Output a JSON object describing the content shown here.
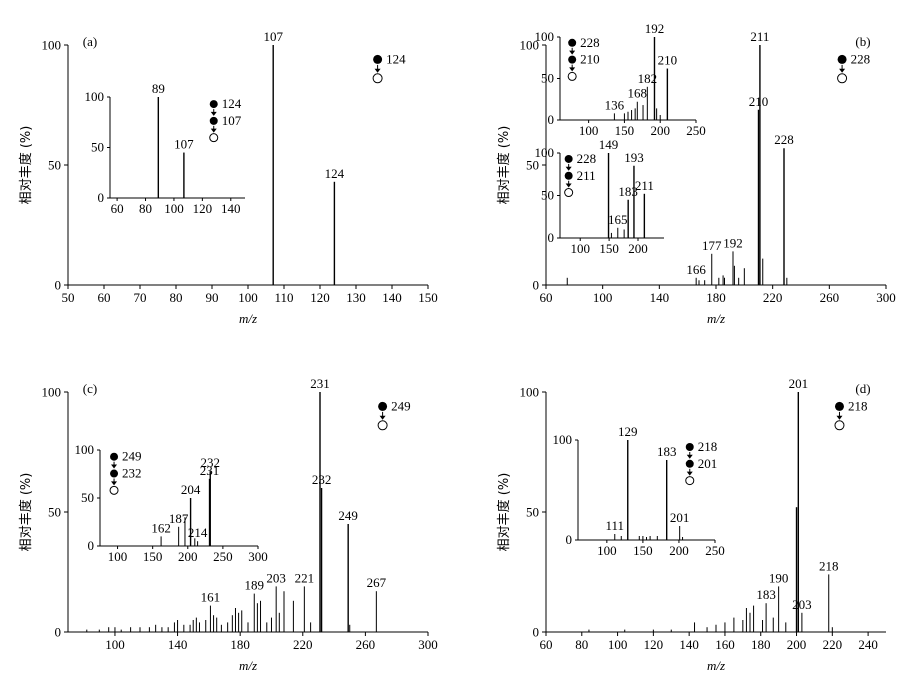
{
  "chart_data": [
    {
      "id": "a",
      "type": "bar",
      "panel_label": "(a)",
      "xlabel": "m/z",
      "ylabel": "相对丰度 (%)",
      "xlim": [
        50,
        150
      ],
      "ylim": [
        0,
        100
      ],
      "xticks": [
        50,
        60,
        70,
        80,
        90,
        100,
        110,
        120,
        130,
        140,
        150
      ],
      "yticks": [
        0,
        50,
        100
      ],
      "peaks": [
        {
          "x": 107,
          "y": 100
        },
        {
          "x": 124,
          "y": 43
        }
      ],
      "peak_labels": [
        {
          "x": 107,
          "y": 100,
          "text": "107"
        },
        {
          "x": 124,
          "y": 43,
          "text": "124"
        }
      ],
      "scheme": {
        "labels": [
          "124"
        ],
        "x": 136,
        "y": 94
      },
      "insets": [
        {
          "xlim": [
            55,
            150
          ],
          "ylim": [
            0,
            100
          ],
          "xticks": [
            60,
            80,
            100,
            120,
            140
          ],
          "yticks": [
            0,
            50,
            100
          ],
          "peaks": [
            {
              "x": 89,
              "y": 100
            },
            {
              "x": 107,
              "y": 45
            }
          ],
          "peak_labels": [
            {
              "x": 89,
              "y": 100,
              "text": "89"
            },
            {
              "x": 107,
              "y": 45,
              "text": "107"
            }
          ],
          "scheme": {
            "labels": [
              "124",
              "107"
            ],
            "x": 128,
            "y": 93
          }
        }
      ]
    },
    {
      "id": "b",
      "type": "bar",
      "panel_label": "(b)",
      "xlabel": "m/z",
      "ylabel": "相对丰度 (%)",
      "xlim": [
        60,
        300
      ],
      "ylim": [
        0,
        100
      ],
      "xticks": [
        60,
        100,
        140,
        180,
        220,
        260,
        300
      ],
      "yticks": [
        0,
        50,
        100
      ],
      "peaks": [
        {
          "x": 75,
          "y": 3
        },
        {
          "x": 166,
          "y": 3
        },
        {
          "x": 168,
          "y": 2
        },
        {
          "x": 172,
          "y": 2
        },
        {
          "x": 177,
          "y": 13
        },
        {
          "x": 182,
          "y": 3
        },
        {
          "x": 185,
          "y": 4
        },
        {
          "x": 186,
          "y": 3
        },
        {
          "x": 192,
          "y": 14
        },
        {
          "x": 193,
          "y": 8
        },
        {
          "x": 196,
          "y": 3
        },
        {
          "x": 200,
          "y": 7
        },
        {
          "x": 210,
          "y": 73
        },
        {
          "x": 211,
          "y": 100
        },
        {
          "x": 213,
          "y": 11
        },
        {
          "x": 228,
          "y": 57
        },
        {
          "x": 230,
          "y": 3
        }
      ],
      "peak_labels": [
        {
          "x": 166,
          "y": 3,
          "text": "166"
        },
        {
          "x": 177,
          "y": 13,
          "text": "177"
        },
        {
          "x": 192,
          "y": 14,
          "text": "192"
        },
        {
          "x": 210,
          "y": 73,
          "text": "210"
        },
        {
          "x": 211,
          "y": 100,
          "text": "211"
        },
        {
          "x": 228,
          "y": 57,
          "text": "228"
        }
      ],
      "scheme": {
        "labels": [
          "228"
        ],
        "x": 269,
        "y": 94
      },
      "insets": [
        {
          "xlim": [
            60,
            250
          ],
          "ylim": [
            0,
            100
          ],
          "xticks": [
            100,
            150,
            200,
            250
          ],
          "yticks": [
            0,
            50,
            100
          ],
          "peaks": [
            {
              "x": 136,
              "y": 8
            },
            {
              "x": 150,
              "y": 8
            },
            {
              "x": 155,
              "y": 10
            },
            {
              "x": 160,
              "y": 12
            },
            {
              "x": 165,
              "y": 14
            },
            {
              "x": 168,
              "y": 22
            },
            {
              "x": 176,
              "y": 18
            },
            {
              "x": 182,
              "y": 40
            },
            {
              "x": 192,
              "y": 100
            },
            {
              "x": 195,
              "y": 14
            },
            {
              "x": 200,
              "y": 6
            },
            {
              "x": 210,
              "y": 62
            }
          ],
          "peak_labels": [
            {
              "x": 136,
              "y": 8,
              "text": "136"
            },
            {
              "x": 168,
              "y": 22,
              "text": "168"
            },
            {
              "x": 182,
              "y": 40,
              "text": "182"
            },
            {
              "x": 192,
              "y": 100,
              "text": "192"
            },
            {
              "x": 210,
              "y": 62,
              "text": "210"
            }
          ],
          "scheme": {
            "labels": [
              "228",
              "210"
            ],
            "x": 77,
            "y": 93
          }
        },
        {
          "xlim": [
            65,
            245
          ],
          "ylim": [
            0,
            100
          ],
          "xticks": [
            100,
            150,
            200
          ],
          "yticks": [
            0,
            50,
            100
          ],
          "peaks": [
            {
              "x": 149,
              "y": 100
            },
            {
              "x": 154,
              "y": 6
            },
            {
              "x": 165,
              "y": 12
            },
            {
              "x": 176,
              "y": 10
            },
            {
              "x": 183,
              "y": 45
            },
            {
              "x": 193,
              "y": 85
            },
            {
              "x": 211,
              "y": 52
            }
          ],
          "peak_labels": [
            {
              "x": 149,
              "y": 100,
              "text": "149"
            },
            {
              "x": 165,
              "y": 12,
              "text": "165"
            },
            {
              "x": 183,
              "y": 45,
              "text": "183"
            },
            {
              "x": 193,
              "y": 85,
              "text": "193"
            },
            {
              "x": 211,
              "y": 52,
              "text": "211"
            }
          ],
          "scheme": {
            "labels": [
              "228",
              "211"
            ],
            "x": 80,
            "y": 93
          }
        }
      ]
    },
    {
      "id": "c",
      "type": "bar",
      "panel_label": "(c)",
      "xlabel": "m/z",
      "ylabel": "相对丰度 (%)",
      "xlim": [
        70,
        300
      ],
      "ylim": [
        0,
        100
      ],
      "xticks": [
        100,
        140,
        180,
        220,
        260,
        300
      ],
      "yticks": [
        0,
        50,
        100
      ],
      "peaks": [
        {
          "x": 82,
          "y": 1
        },
        {
          "x": 90,
          "y": 1
        },
        {
          "x": 96,
          "y": 2
        },
        {
          "x": 100,
          "y": 2
        },
        {
          "x": 104,
          "y": 1
        },
        {
          "x": 110,
          "y": 2
        },
        {
          "x": 116,
          "y": 2
        },
        {
          "x": 122,
          "y": 2
        },
        {
          "x": 126,
          "y": 3
        },
        {
          "x": 130,
          "y": 2
        },
        {
          "x": 134,
          "y": 2
        },
        {
          "x": 138,
          "y": 4
        },
        {
          "x": 140,
          "y": 5
        },
        {
          "x": 144,
          "y": 3
        },
        {
          "x": 148,
          "y": 3
        },
        {
          "x": 150,
          "y": 5
        },
        {
          "x": 152,
          "y": 6
        },
        {
          "x": 154,
          "y": 4
        },
        {
          "x": 158,
          "y": 5
        },
        {
          "x": 161,
          "y": 11
        },
        {
          "x": 163,
          "y": 7
        },
        {
          "x": 165,
          "y": 6
        },
        {
          "x": 168,
          "y": 3
        },
        {
          "x": 172,
          "y": 4
        },
        {
          "x": 175,
          "y": 7
        },
        {
          "x": 177,
          "y": 10
        },
        {
          "x": 179,
          "y": 8
        },
        {
          "x": 181,
          "y": 9
        },
        {
          "x": 185,
          "y": 4
        },
        {
          "x": 189,
          "y": 16
        },
        {
          "x": 191,
          "y": 12
        },
        {
          "x": 193,
          "y": 13
        },
        {
          "x": 197,
          "y": 4
        },
        {
          "x": 200,
          "y": 6
        },
        {
          "x": 203,
          "y": 19
        },
        {
          "x": 205,
          "y": 8
        },
        {
          "x": 208,
          "y": 17
        },
        {
          "x": 214,
          "y": 13
        },
        {
          "x": 221,
          "y": 19
        },
        {
          "x": 225,
          "y": 4
        },
        {
          "x": 231,
          "y": 100
        },
        {
          "x": 232,
          "y": 60
        },
        {
          "x": 249,
          "y": 45
        },
        {
          "x": 250,
          "y": 3
        },
        {
          "x": 267,
          "y": 17
        }
      ],
      "peak_labels": [
        {
          "x": 161,
          "y": 11,
          "text": "161"
        },
        {
          "x": 189,
          "y": 16,
          "text": "189"
        },
        {
          "x": 203,
          "y": 19,
          "text": "203"
        },
        {
          "x": 221,
          "y": 19,
          "text": "221"
        },
        {
          "x": 231,
          "y": 100,
          "text": "231"
        },
        {
          "x": 232,
          "y": 60,
          "text": "232"
        },
        {
          "x": 249,
          "y": 45,
          "text": "249"
        },
        {
          "x": 267,
          "y": 17,
          "text": "267"
        }
      ],
      "scheme": {
        "labels": [
          "249"
        ],
        "x": 271,
        "y": 94
      },
      "insets": [
        {
          "xlim": [
            75,
            300
          ],
          "ylim": [
            0,
            100
          ],
          "xticks": [
            100,
            150,
            200,
            250,
            300
          ],
          "yticks": [
            0,
            50,
            100
          ],
          "peaks": [
            {
              "x": 162,
              "y": 10
            },
            {
              "x": 187,
              "y": 20
            },
            {
              "x": 196,
              "y": 30
            },
            {
              "x": 204,
              "y": 50
            },
            {
              "x": 210,
              "y": 8
            },
            {
              "x": 214,
              "y": 5
            },
            {
              "x": 231,
              "y": 70
            },
            {
              "x": 232,
              "y": 78
            }
          ],
          "peak_labels": [
            {
              "x": 162,
              "y": 10,
              "text": "162"
            },
            {
              "x": 187,
              "y": 20,
              "text": "187"
            },
            {
              "x": 204,
              "y": 50,
              "text": "204"
            },
            {
              "x": 214,
              "y": 5,
              "text": "214"
            },
            {
              "x": 231,
              "y": 70,
              "text": "231"
            },
            {
              "x": 232,
              "y": 78,
              "text": "232"
            }
          ],
          "scheme": {
            "labels": [
              "249",
              "232"
            ],
            "x": 95,
            "y": 93
          }
        }
      ]
    },
    {
      "id": "d",
      "type": "bar",
      "panel_label": "(d)",
      "xlabel": "m/z",
      "ylabel": "相对丰度 (%)",
      "xlim": [
        60,
        250
      ],
      "ylim": [
        0,
        100
      ],
      "xticks": [
        60,
        80,
        100,
        120,
        140,
        160,
        180,
        200,
        220,
        240
      ],
      "yticks": [
        0,
        50,
        100
      ],
      "peaks": [
        {
          "x": 84,
          "y": 1
        },
        {
          "x": 104,
          "y": 1
        },
        {
          "x": 120,
          "y": 1
        },
        {
          "x": 130,
          "y": 1
        },
        {
          "x": 143,
          "y": 4
        },
        {
          "x": 150,
          "y": 2
        },
        {
          "x": 155,
          "y": 3
        },
        {
          "x": 160,
          "y": 4
        },
        {
          "x": 165,
          "y": 6
        },
        {
          "x": 170,
          "y": 5
        },
        {
          "x": 172,
          "y": 10
        },
        {
          "x": 174,
          "y": 8
        },
        {
          "x": 176,
          "y": 11
        },
        {
          "x": 181,
          "y": 5
        },
        {
          "x": 183,
          "y": 12
        },
        {
          "x": 187,
          "y": 6
        },
        {
          "x": 190,
          "y": 19
        },
        {
          "x": 194,
          "y": 4
        },
        {
          "x": 200,
          "y": 52
        },
        {
          "x": 201,
          "y": 100
        },
        {
          "x": 203,
          "y": 8
        },
        {
          "x": 218,
          "y": 24
        },
        {
          "x": 220,
          "y": 2
        }
      ],
      "peak_labels": [
        {
          "x": 183,
          "y": 12,
          "text": "183"
        },
        {
          "x": 190,
          "y": 19,
          "text": "190"
        },
        {
          "x": 201,
          "y": 100,
          "text": "201"
        },
        {
          "x": 203,
          "y": 8,
          "text": "203"
        },
        {
          "x": 218,
          "y": 24,
          "text": "218"
        }
      ],
      "scheme": {
        "labels": [
          "218"
        ],
        "x": 224,
        "y": 94
      },
      "insets": [
        {
          "xlim": [
            60,
            250
          ],
          "ylim": [
            0,
            100
          ],
          "xticks": [
            100,
            150,
            200,
            250
          ],
          "yticks": [
            0,
            100
          ],
          "peaks": [
            {
              "x": 111,
              "y": 6
            },
            {
              "x": 120,
              "y": 4
            },
            {
              "x": 129,
              "y": 100
            },
            {
              "x": 145,
              "y": 4
            },
            {
              "x": 150,
              "y": 4
            },
            {
              "x": 155,
              "y": 3
            },
            {
              "x": 160,
              "y": 4
            },
            {
              "x": 170,
              "y": 4
            },
            {
              "x": 183,
              "y": 80
            },
            {
              "x": 201,
              "y": 14
            },
            {
              "x": 205,
              "y": 3
            }
          ],
          "peak_labels": [
            {
              "x": 111,
              "y": 6,
              "text": "111"
            },
            {
              "x": 129,
              "y": 100,
              "text": "129"
            },
            {
              "x": 183,
              "y": 80,
              "text": "183"
            },
            {
              "x": 201,
              "y": 14,
              "text": "201"
            }
          ],
          "scheme": {
            "labels": [
              "218",
              "201"
            ],
            "x": 215,
            "y": 93
          }
        }
      ]
    }
  ]
}
